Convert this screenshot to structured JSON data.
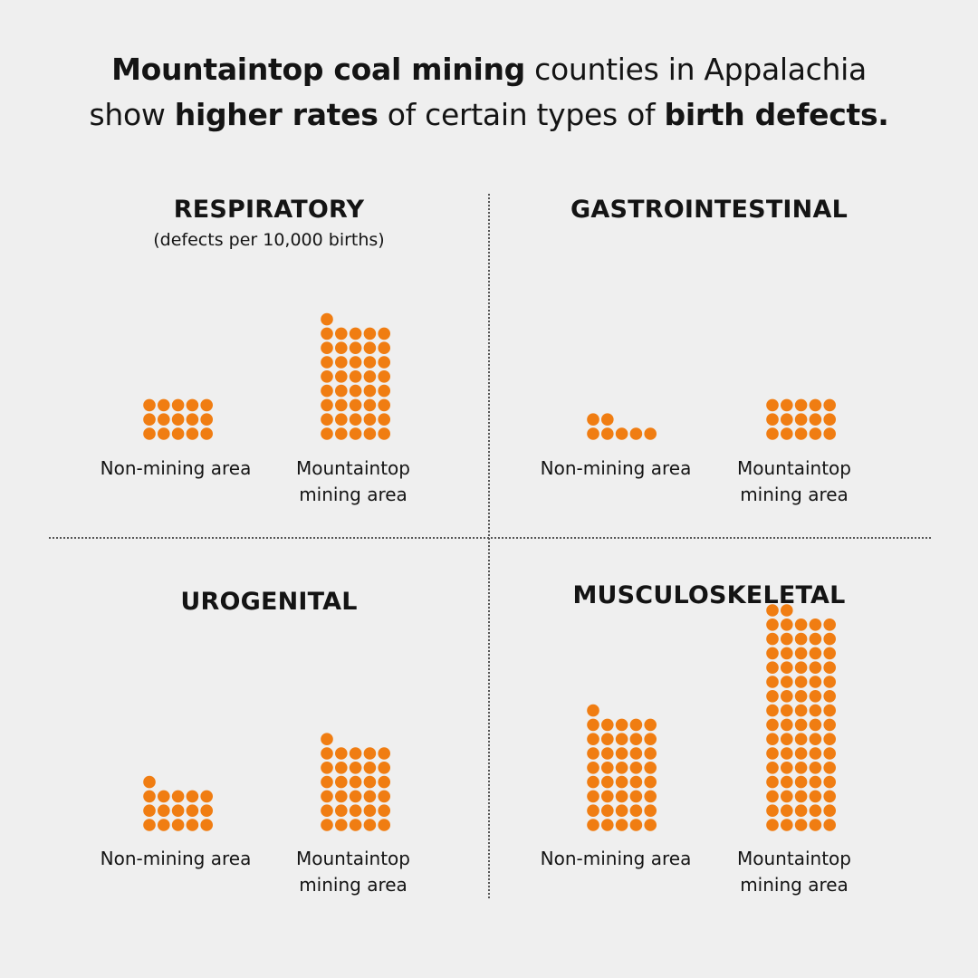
{
  "headline": {
    "line1": [
      {
        "text": "Mountaintop coal mining",
        "bold": true
      },
      {
        "text": " counties in Appalachia",
        "bold": false
      }
    ],
    "line2": [
      {
        "text": "show ",
        "bold": false
      },
      {
        "text": "higher rates",
        "bold": true
      },
      {
        "text": " of certain types of ",
        "bold": false
      },
      {
        "text": "birth defects.",
        "bold": true
      }
    ]
  },
  "dot_color": "#f07d12",
  "chart_data": [
    {
      "type": "bar",
      "title": "RESPIRATORY",
      "subtitle": "(defects per 10,000 births)",
      "categories": [
        "Non-mining area",
        "Mountaintop mining area"
      ],
      "label_lines": [
        [
          "Non-mining area"
        ],
        [
          "Mountaintop",
          "mining area"
        ]
      ],
      "values": [
        15,
        41
      ],
      "ylabel": "defects per 10,000 births"
    },
    {
      "type": "bar",
      "title": "GASTROINTESTINAL",
      "categories": [
        "Non-mining area",
        "Mountaintop mining area"
      ],
      "label_lines": [
        [
          "Non-mining area"
        ],
        [
          "Mountaintop",
          "mining area"
        ]
      ],
      "values": [
        7,
        15
      ]
    },
    {
      "type": "bar",
      "title": "UROGENITAL",
      "categories": [
        "Non-mining area",
        "Mountaintop mining area"
      ],
      "label_lines": [
        [
          "Non-mining area"
        ],
        [
          "Mountaintop",
          "mining area"
        ]
      ],
      "values": [
        16,
        31
      ]
    },
    {
      "type": "bar",
      "title": "MUSCULOSKELETAL",
      "categories": [
        "Non-mining area",
        "Mountaintop mining area"
      ],
      "label_lines": [
        [
          "Non-mining area"
        ],
        [
          "Mountaintop",
          "mining area"
        ]
      ],
      "values": [
        41,
        77
      ]
    }
  ]
}
